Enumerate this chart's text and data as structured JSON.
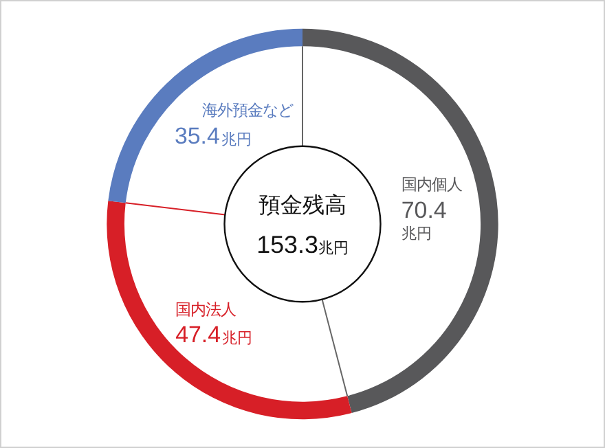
{
  "chart_data": {
    "type": "donut",
    "title": "預金残高",
    "subtitle": "153.3兆円",
    "categories": [
      "国内個人",
      "国内法人",
      "海外預金など"
    ],
    "values": [
      70.4,
      47.4,
      35.4
    ],
    "colors": [
      "#58585a",
      "#d71f27",
      "#5a7cbf"
    ],
    "value_labels": [
      "70.4兆円",
      "47.4兆円",
      "35.4兆円"
    ],
    "legend": false
  }
}
